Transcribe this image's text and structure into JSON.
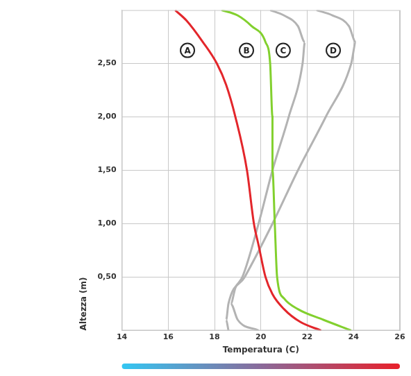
{
  "chart_data": {
    "type": "line",
    "x_label": "Temperatura (C)",
    "y_label": "Altezza (m)",
    "xlim": [
      14,
      26
    ],
    "xticks": [
      14,
      16,
      18,
      20,
      22,
      24,
      26
    ],
    "ylim": [
      0,
      3
    ],
    "yticks": [
      {
        "value": 0.5,
        "label": "0,50"
      },
      {
        "value": 1.0,
        "label": "1,00"
      },
      {
        "value": 1.5,
        "label": "1,50"
      },
      {
        "value": 2.0,
        "label": "2,00"
      },
      {
        "value": 2.5,
        "label": "2,50"
      }
    ],
    "grid": true,
    "series": [
      {
        "name": "A",
        "color": "#e3262b",
        "x": [
          22.6,
          21.7,
          21.0,
          20.5,
          20.2,
          19.9,
          19.7,
          19.4,
          18.9,
          18.5,
          18.1,
          17.5,
          16.8,
          16.3
        ],
        "y": [
          0,
          0.08,
          0.2,
          0.34,
          0.5,
          0.8,
          1.0,
          1.5,
          2.0,
          2.3,
          2.5,
          2.7,
          2.9,
          3.0
        ]
      },
      {
        "name": "B",
        "color": "#82d02e",
        "x": [
          23.9,
          22.7,
          21.6,
          21.0,
          20.7,
          20.6,
          20.5,
          20.5,
          20.4,
          20.2,
          19.6,
          19.0,
          18.3
        ],
        "y": [
          0,
          0.1,
          0.2,
          0.3,
          0.5,
          1.0,
          1.5,
          2.0,
          2.5,
          2.7,
          2.85,
          2.95,
          3.0
        ]
      },
      {
        "name": "C",
        "color": "#b3b3b3",
        "x": [
          19.9,
          19.0,
          18.7,
          18.9,
          19.2,
          19.9,
          20.5,
          21.2,
          21.8,
          21.9,
          21.6,
          21.0,
          20.4
        ],
        "y": [
          0,
          0.1,
          0.25,
          0.4,
          0.5,
          1.0,
          1.5,
          2.0,
          2.5,
          2.7,
          2.85,
          2.95,
          3.0
        ]
      },
      {
        "name": "D",
        "color": "#b3b3b3",
        "x": [
          18.6,
          18.5,
          18.6,
          19.3,
          20.5,
          21.6,
          22.8,
          23.9,
          24.1,
          23.8,
          23.1,
          22.4
        ],
        "y": [
          0,
          0.1,
          0.25,
          0.5,
          1.0,
          1.5,
          2.0,
          2.5,
          2.7,
          2.85,
          2.95,
          3.0
        ]
      }
    ]
  }
}
